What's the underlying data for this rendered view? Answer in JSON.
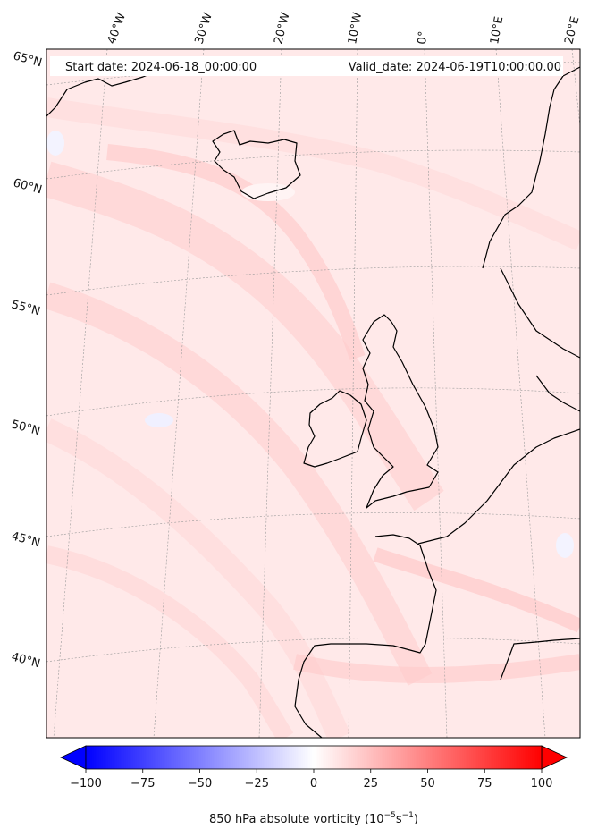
{
  "header": {
    "start_date": "Start date: 2024-06-18_00:00:00",
    "valid_date": "Valid_date: 2024-06-19T10:00:00.00"
  },
  "longitude_labels": [
    "40°W",
    "30°W",
    "20°W",
    "10°W",
    "0°",
    "10°E",
    "20°E"
  ],
  "latitude_labels": [
    "65°N",
    "60°N",
    "55°N",
    "50°N",
    "45°N",
    "40°N"
  ],
  "colorbar": {
    "tick_labels": [
      "−100",
      "−75",
      "−50",
      "−25",
      "0",
      "25",
      "50",
      "75",
      "100"
    ],
    "ticks": [
      -100,
      -75,
      -50,
      -25,
      0,
      25,
      50,
      75,
      100
    ],
    "range": [
      -100,
      100
    ],
    "label_main": "850 hPa absolute vorticity (10",
    "label_exp1": "−5",
    "label_mid": "s",
    "label_exp2": "−1",
    "label_end": ")",
    "colors": {
      "low": "#0000ff",
      "mid": "#ffffff",
      "high": "#ff0000"
    }
  },
  "map": {
    "field_color": "#ffe6e6",
    "coastline_color": "#000000",
    "gridline_color": "#9a9a9a"
  }
}
